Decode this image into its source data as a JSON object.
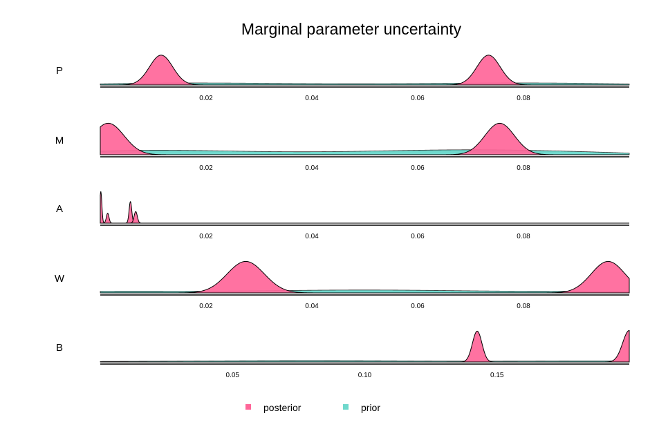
{
  "chart_data": {
    "type": "area",
    "title": "Marginal parameter uncertainty",
    "legend": {
      "placement": "bottom",
      "items": [
        {
          "name": "posterior",
          "color": "#FF6699"
        },
        {
          "name": "prior",
          "color": "#6FD8CC"
        }
      ]
    },
    "panels": [
      {
        "label": "P",
        "xlim": [
          0.0,
          0.1
        ],
        "ticks": [
          0.02,
          0.04,
          0.06,
          0.08
        ],
        "tick_labels": [
          "0.02",
          "0.04",
          "0.06",
          "0.08"
        ],
        "posterior_peaks": [
          {
            "mean": 0.0115,
            "sd": 0.0022,
            "height": 0.9
          },
          {
            "mean": 0.0734,
            "sd": 0.0022,
            "height": 0.9
          }
        ],
        "prior": "uniform-flat",
        "prior_height": 0.05
      },
      {
        "label": "M",
        "xlim": [
          0.0,
          0.1
        ],
        "ticks": [
          0.02,
          0.04,
          0.06,
          0.08
        ],
        "tick_labels": [
          "0.02",
          "0.04",
          "0.06",
          "0.08"
        ],
        "posterior_peaks": [
          {
            "mean": 0.0015,
            "sd": 0.003,
            "height": 0.95
          },
          {
            "mean": 0.0755,
            "sd": 0.0028,
            "height": 0.95
          }
        ],
        "prior": "uniform-flat",
        "prior_height": 0.12
      },
      {
        "label": "A",
        "xlim": [
          0.0,
          0.1
        ],
        "ticks": [
          0.02,
          0.04,
          0.06,
          0.08
        ],
        "tick_labels": [
          "0.02",
          "0.04",
          "0.06",
          "0.08"
        ],
        "posterior_peaks": [
          {
            "mean": 0.0001,
            "sd": 0.0002,
            "height": 0.95
          },
          {
            "mean": 0.0014,
            "sd": 0.00025,
            "height": 0.3
          },
          {
            "mean": 0.0057,
            "sd": 0.00025,
            "height": 0.65
          },
          {
            "mean": 0.0067,
            "sd": 0.0003,
            "height": 0.35
          }
        ],
        "prior": "none",
        "prior_height": 0.0
      },
      {
        "label": "W",
        "xlim": [
          0.0,
          0.1
        ],
        "ticks": [
          0.02,
          0.04,
          0.06,
          0.08
        ],
        "tick_labels": [
          "0.02",
          "0.04",
          "0.06",
          "0.08"
        ],
        "posterior_peaks": [
          {
            "mean": 0.0275,
            "sd": 0.0035,
            "height": 0.95
          },
          {
            "mean": 0.096,
            "sd": 0.0032,
            "height": 0.95
          }
        ],
        "prior": "uniform-flat",
        "prior_height": 0.07
      },
      {
        "label": "B",
        "xlim": [
          0.0,
          0.2
        ],
        "ticks": [
          0.05,
          0.1,
          0.15
        ],
        "tick_labels": [
          "0.05",
          "0.10",
          "0.15"
        ],
        "posterior_peaks": [
          {
            "mean": 0.1425,
            "sd": 0.0018,
            "height": 0.93
          },
          {
            "mean": 0.2,
            "sd": 0.0025,
            "height": 0.95
          }
        ],
        "prior": "uniform-flat",
        "prior_height": 0.035
      }
    ]
  }
}
